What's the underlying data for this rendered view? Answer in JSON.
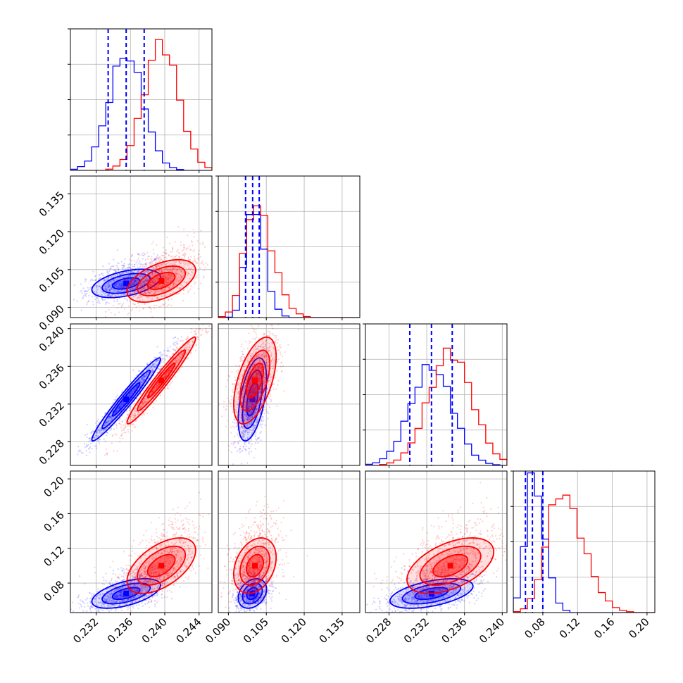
{
  "chart_data": {
    "type": "corner",
    "grid": true,
    "colors": {
      "series_a": "#0000ff",
      "series_b": "#ff0000"
    },
    "parameters": [
      {
        "range": [
          0.229,
          0.2455
        ],
        "ticks": [
          0.232,
          0.236,
          0.24,
          0.244
        ],
        "tick_labels": [
          "0.232",
          "0.236",
          "0.240",
          "0.244"
        ]
      },
      {
        "range": [
          0.086,
          0.142
        ],
        "ticks": [
          0.09,
          0.105,
          0.12,
          0.135
        ],
        "tick_labels": [
          "0.090",
          "0.105",
          "0.120",
          "0.135"
        ]
      },
      {
        "range": [
          0.2255,
          0.2405
        ],
        "ticks": [
          0.228,
          0.232,
          0.236,
          0.24
        ],
        "tick_labels": [
          "0.228",
          "0.232",
          "0.236",
          "0.240"
        ]
      },
      {
        "range": [
          0.046,
          0.209
        ],
        "ticks": [
          0.08,
          0.12,
          0.16,
          0.2
        ],
        "tick_labels": [
          "0.08",
          "0.12",
          "0.16",
          "0.20"
        ]
      }
    ],
    "series": [
      {
        "color": "#0000ff",
        "mean": [
          0.2355,
          0.0995,
          0.2325,
          0.068
        ],
        "std": [
          0.002,
          0.0028,
          0.0022,
          0.0085
        ],
        "quantiles": [
          [
            0.2334,
            0.2355,
            0.2376
          ],
          [
            0.0968,
            0.0996,
            0.1022
          ],
          [
            0.2302,
            0.2325,
            0.2347
          ],
          [
            0.06,
            0.068,
            0.08
          ]
        ],
        "corr": [
          [
            1,
            0.45,
            0.97,
            0.55
          ],
          [
            0.45,
            1,
            0.5,
            0.3
          ],
          [
            0.97,
            0.5,
            1,
            0.5
          ],
          [
            0.55,
            0.3,
            0.5,
            1
          ]
        ],
        "hist_peak": [
          0.82,
          0.8,
          0.7,
          0.95
        ]
      },
      {
        "color": "#ff0000",
        "mean": [
          0.2396,
          0.1005,
          0.2345,
          0.1
        ],
        "std": [
          0.002,
          0.0042,
          0.0023,
          0.016
        ],
        "corr": [
          [
            1,
            0.5,
            0.97,
            0.55
          ],
          [
            0.5,
            1,
            0.55,
            0.3
          ],
          [
            0.97,
            0.55,
            1,
            0.5
          ],
          [
            0.55,
            0.3,
            0.5,
            1
          ]
        ],
        "hist_peak": [
          0.9,
          0.8,
          0.8,
          0.85
        ]
      }
    ]
  }
}
